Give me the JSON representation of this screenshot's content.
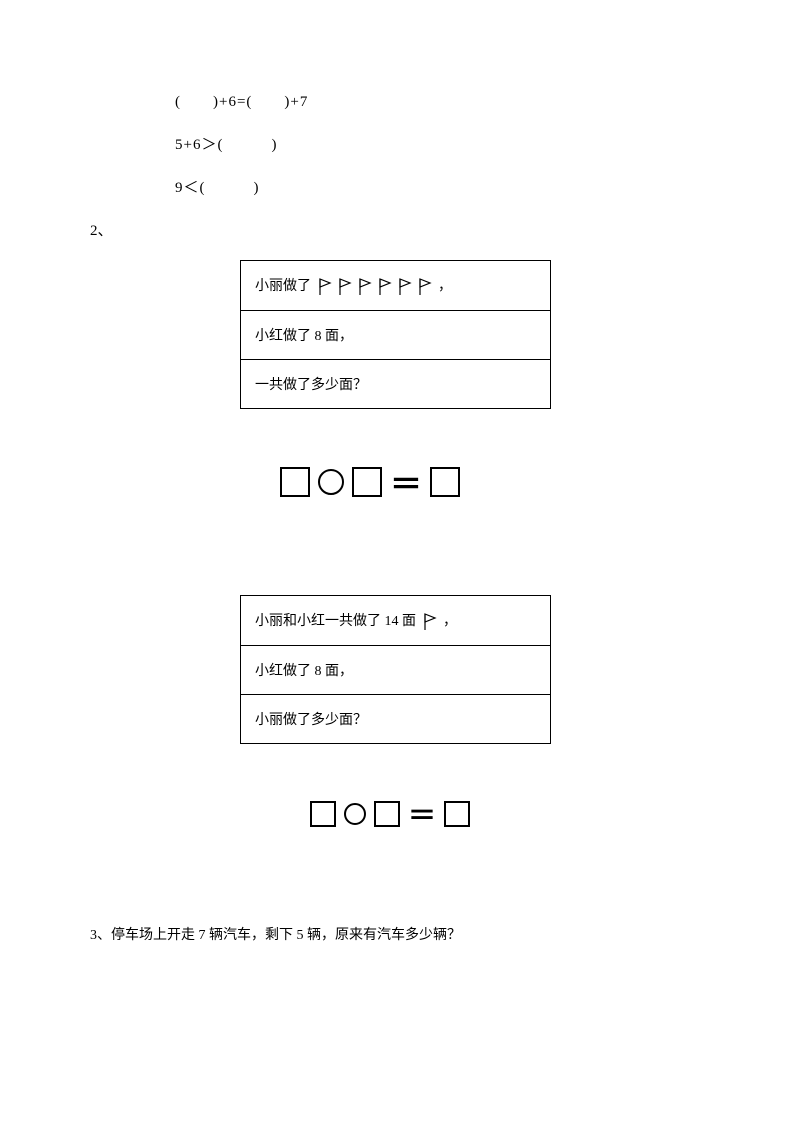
{
  "equations": {
    "line1": "(　　)+6=(　　)+7",
    "line2": "5+6＞(　　　)",
    "line3": "9＜(　　　)"
  },
  "section2_label": "2、",
  "problem1": {
    "row1_prefix": "小丽做了",
    "row1_suffix": "，",
    "flag_count": 6,
    "row2": "小红做了 8 面，",
    "row3": "一共做了多少面？"
  },
  "template1": {
    "sq_big": 30,
    "circ": 26,
    "eq_font": 32
  },
  "problem2": {
    "row1_prefix": "小丽和小红一共做了 14 面",
    "row1_suffix": "，",
    "flag_count": 1,
    "row2": "小红做了 8 面，",
    "row3": "小丽做了多少面？"
  },
  "template2": {
    "sq_big": 26,
    "circ": 22,
    "eq_font": 28
  },
  "question3": "3、停车场上开走 7 辆汽车，剩下 5 辆，原来有汽车多少辆？",
  "colors": {
    "text": "#000000",
    "bg": "#ffffff",
    "border": "#000000"
  },
  "flag_svg": {
    "width": 16,
    "height": 18,
    "stroke": "#000000"
  }
}
